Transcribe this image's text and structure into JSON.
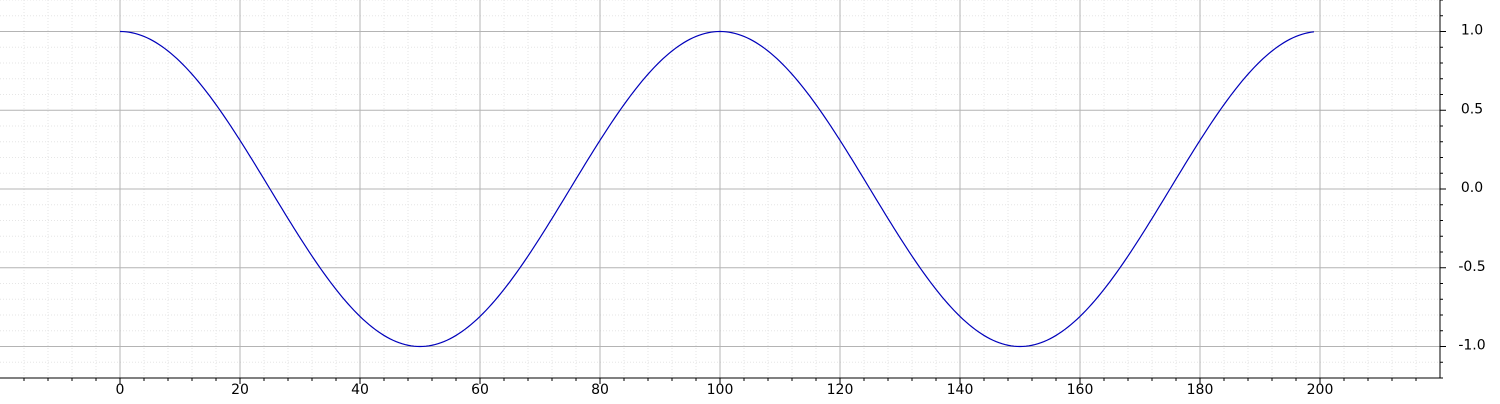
{
  "chart_data": {
    "type": "line",
    "title": "",
    "xlabel": "",
    "ylabel": "",
    "x_range": [
      -20,
      220
    ],
    "y_range": [
      -1.2,
      1.2
    ],
    "x_ticks": [
      0,
      20,
      40,
      60,
      80,
      100,
      120,
      140,
      160,
      180,
      200
    ],
    "y_ticks": [
      1.0,
      0.5,
      0.0,
      -0.5,
      -1.0
    ],
    "x_tick_labels": [
      "0",
      "20",
      "40",
      "60",
      "80",
      "100",
      "120",
      "140",
      "160",
      "180",
      "200"
    ],
    "y_tick_labels": [
      "1.0",
      "0.5",
      "0.0",
      "-0.5",
      "-1.0"
    ],
    "y_axis_side": "right",
    "grid": true,
    "minor_grid": true,
    "legend": "none",
    "series": [
      {
        "color": "#0000bb",
        "x_start": 0,
        "x_end": 199,
        "period": 100,
        "x": [
          0,
          12.5,
          25,
          37.5,
          50,
          62.5,
          75,
          87.5,
          100,
          112.5,
          125,
          137.5,
          150,
          162.5,
          175,
          187.5,
          199
        ],
        "y": [
          1.0,
          0.707,
          0.0,
          -0.707,
          -1.0,
          -0.707,
          0.0,
          0.707,
          1.0,
          0.707,
          0.0,
          -0.707,
          -1.0,
          -0.707,
          0.0,
          0.707,
          0.998
        ]
      }
    ]
  },
  "colors": {
    "background": "#ffffff",
    "major_grid": "#b4b4b4",
    "minor_grid": "#e6e6e6",
    "axis": "#000000",
    "line": "#0000bb"
  }
}
